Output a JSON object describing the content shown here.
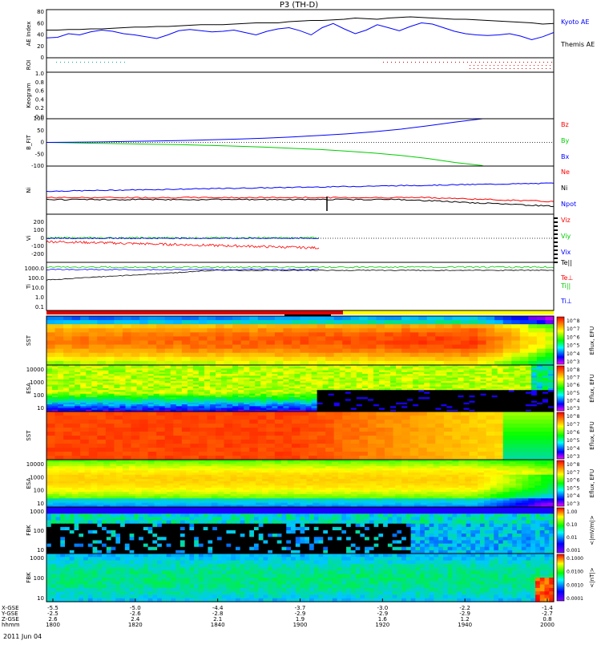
{
  "title": "P3 (TH-D)",
  "date_label": "2011 Jun 04",
  "colors": {
    "blue": "#0000ff",
    "red": "#ff0000",
    "green": "#00cc00",
    "black": "#000000",
    "bar_red": "#e00000",
    "bar_yellow": "#ffff00"
  },
  "chart_data": [
    {
      "type": "line",
      "panel": "ae",
      "ylabel": "AE Index",
      "ylim": [
        0,
        80
      ],
      "yticks": [
        "80",
        "60",
        "40",
        "20",
        "0"
      ],
      "series": [
        {
          "name": "Kyoto AE",
          "color": "#0000ff",
          "values": [
            33,
            34,
            40,
            38,
            43,
            46,
            44,
            40,
            38,
            35,
            32,
            38,
            45,
            47,
            45,
            43,
            44,
            46,
            42,
            38,
            44,
            48,
            50,
            45,
            38,
            50,
            57,
            48,
            40,
            46,
            55,
            50,
            45,
            52,
            58,
            56,
            50,
            44,
            40,
            38,
            37,
            38,
            40,
            36,
            30,
            35,
            42
          ]
        },
        {
          "name": "Themis AE",
          "color": "#000000",
          "values": [
            46,
            46,
            47,
            47,
            48,
            48,
            49,
            50,
            51,
            51,
            52,
            52,
            53,
            54,
            55,
            55,
            55,
            56,
            57,
            58,
            58,
            58,
            60,
            61,
            62,
            62,
            63,
            64,
            66,
            65,
            64,
            66,
            67,
            68,
            67,
            66,
            65,
            64,
            64,
            63,
            62,
            61,
            60,
            59,
            58,
            56,
            57
          ]
        }
      ]
    },
    {
      "type": "scatter",
      "panel": "roi",
      "ylabel": "ROI"
    },
    {
      "type": "line",
      "panel": "keogram",
      "ylabel": "Keogram",
      "yticks": [
        "1.0",
        "0.8",
        "0.6",
        "0.4",
        "0.2",
        "0.0"
      ]
    },
    {
      "type": "line",
      "panel": "bfit",
      "ylabel": "B_FIT",
      "ylim": [
        -100,
        100
      ],
      "yticks": [
        "100",
        "50",
        "0",
        "-50",
        "-100"
      ],
      "series": [
        {
          "name": "Bz",
          "color": "#ff0000",
          "values": []
        },
        {
          "name": "By",
          "color": "#00cc00",
          "values": [
            0,
            -2,
            -4,
            -6,
            -8,
            -10,
            -13,
            -16,
            -20,
            -25,
            -30,
            -37,
            -45,
            -55,
            -68,
            -85,
            -98
          ]
        },
        {
          "name": "Bx",
          "color": "#0000ff",
          "values": [
            0,
            1,
            2,
            4,
            6,
            8,
            11,
            14,
            18,
            23,
            29,
            36,
            45,
            56,
            70,
            86,
            100
          ]
        }
      ]
    },
    {
      "type": "line",
      "panel": "ni",
      "ylabel": "Ni",
      "ylabels": [
        "Ne",
        "Ni",
        "Npot"
      ],
      "series": [
        {
          "name": "Ne",
          "color": "#ff0000"
        },
        {
          "name": "Ni",
          "color": "#000000"
        },
        {
          "name": "Npot",
          "color": "#0000ff"
        }
      ]
    },
    {
      "type": "line",
      "panel": "vi",
      "ylabel": "Vi",
      "ylim": [
        -300,
        300
      ],
      "yticks": [
        "200",
        "100",
        "0",
        "-100",
        "-200"
      ],
      "series": [
        {
          "name": "Viz",
          "color": "#ff0000"
        },
        {
          "name": "Viy",
          "color": "#00cc00"
        },
        {
          "name": "Vix",
          "color": "#0000ff"
        }
      ]
    },
    {
      "type": "line",
      "panel": "ti",
      "ylabel": "Ti",
      "yticks": [
        "1000.0",
        "100.0",
        "10.0",
        "1.0",
        "0.1"
      ],
      "series": [
        {
          "name": "Te||",
          "color": "#000000"
        },
        {
          "name": "Te⊥",
          "color": "#ff0000"
        },
        {
          "name": "Ti||",
          "color": "#00cc00"
        },
        {
          "name": "Ti⊥",
          "color": "#0000ff"
        }
      ]
    },
    {
      "type": "heatmap",
      "panel": "sst_i",
      "ylabel": "SST",
      "cbar_ticks": [
        "10^8",
        "10^7",
        "10^6",
        "10^5",
        "10^4",
        "10^3"
      ],
      "cbar_label": "Eflux, EFU"
    },
    {
      "type": "heatmap",
      "panel": "esa_i",
      "ylabel": "ESA",
      "yticks": [
        "10000",
        "1000",
        "100",
        "10"
      ],
      "cbar_ticks": [
        "10^8",
        "10^7",
        "10^6",
        "10^5",
        "10^4",
        "10^3"
      ],
      "cbar_label": "Eflux, EFU"
    },
    {
      "type": "heatmap",
      "panel": "sst_e",
      "ylabel": "SST",
      "cbar_ticks": [
        "10^8",
        "10^7",
        "10^6",
        "10^5",
        "10^4",
        "10^3"
      ],
      "cbar_label": "Eflux, EFU"
    },
    {
      "type": "heatmap",
      "panel": "esa_e",
      "ylabel": "ESA",
      "yticks": [
        "10000",
        "1000",
        "100",
        "10"
      ],
      "cbar_ticks": [
        "10^8",
        "10^7",
        "10^6",
        "10^5",
        "10^4",
        "10^3"
      ],
      "cbar_label": "Eflux, EFU"
    },
    {
      "type": "heatmap",
      "panel": "fbk_b",
      "ylabel": "FBK",
      "yticks": [
        "1000",
        "100",
        "10"
      ],
      "cbar_ticks": [
        "1.00",
        "0.10",
        "0.01",
        "0.001"
      ],
      "cbar_label": "<|mV/m|>"
    },
    {
      "type": "heatmap",
      "panel": "fbk_e",
      "ylabel": "FBK",
      "yticks": [
        "1000",
        "100",
        "10"
      ],
      "cbar_ticks": [
        "0.1000",
        "0.0100",
        "0.0010",
        "0.0001"
      ],
      "cbar_label": "<|nT|>"
    }
  ],
  "xaxis": {
    "row_labels": [
      "X-GSE",
      "Y-GSE",
      "Z-GSE",
      "hhmm"
    ],
    "ticks": [
      {
        "x": "-5.5",
        "y": "-2.5",
        "z": "2.6",
        "t": "1800"
      },
      {
        "x": "-5.0",
        "y": "-2.6",
        "z": "2.4",
        "t": "1820"
      },
      {
        "x": "-4.4",
        "y": "-2.8",
        "z": "2.1",
        "t": "1840"
      },
      {
        "x": "-3.7",
        "y": "-2.9",
        "z": "1.9",
        "t": "1900"
      },
      {
        "x": "-3.0",
        "y": "-2.9",
        "z": "1.6",
        "t": "1920"
      },
      {
        "x": "-2.2",
        "y": "-2.9",
        "z": "1.2",
        "t": "1940"
      },
      {
        "x": "-1.4",
        "y": "-2.7",
        "z": "0.8",
        "t": "2000"
      }
    ]
  }
}
